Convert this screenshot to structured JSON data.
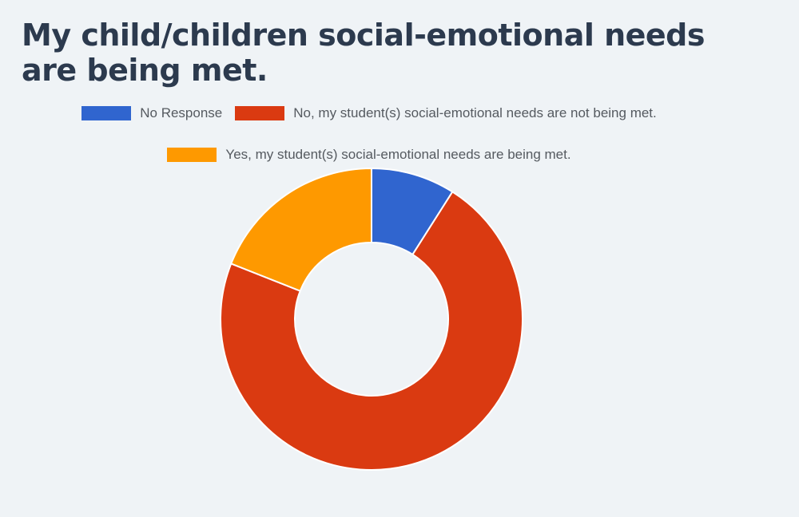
{
  "chart_data": {
    "type": "pie",
    "subtype": "donut",
    "title": "My child/children social-emotional needs are being met.",
    "legend_position": "top",
    "series": [
      {
        "name": "No Response",
        "value": 9,
        "color": "#3065cf"
      },
      {
        "name": "No, my student(s) social-emotional needs are not being met.",
        "value": 72,
        "color": "#da3a11"
      },
      {
        "name": "Yes, my student(s) social-emotional needs are being met.",
        "value": 19,
        "color": "#fe9900"
      }
    ],
    "value_unit": "percent"
  }
}
